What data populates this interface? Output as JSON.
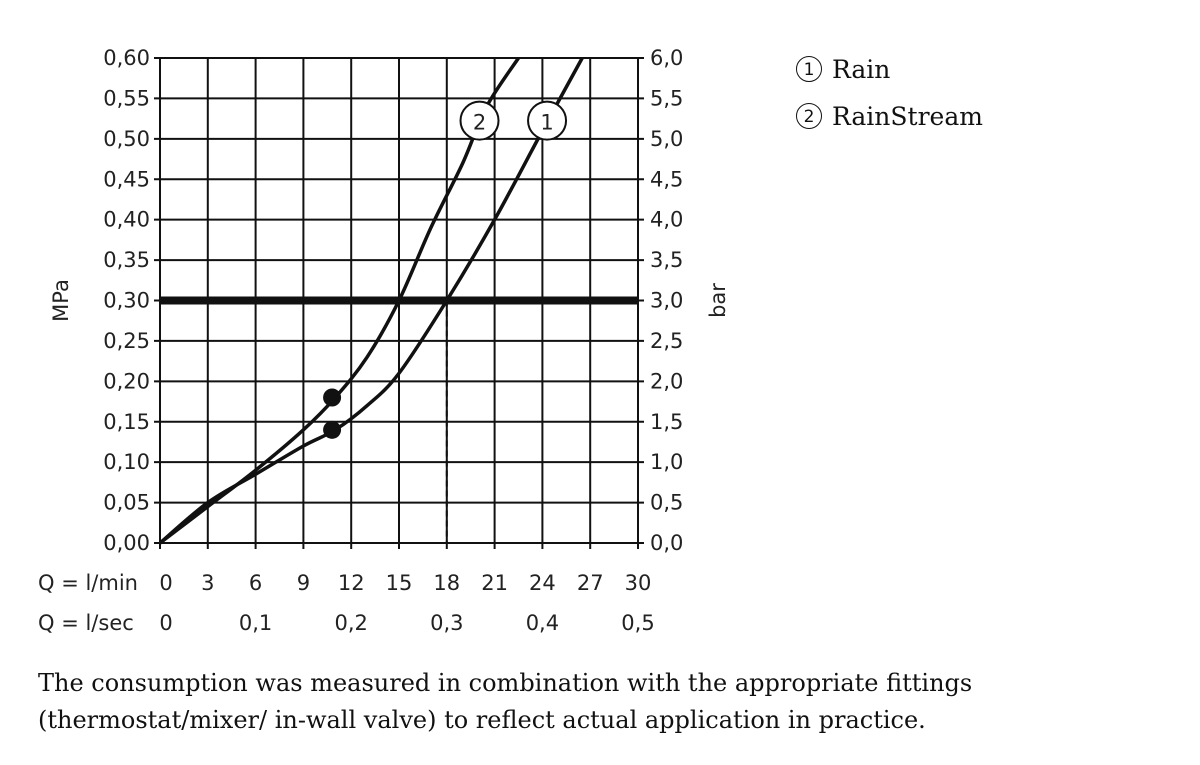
{
  "chart_data": {
    "type": "line",
    "left_axis_label": "MPa",
    "right_axis_label": "bar",
    "y_left_ticks": [
      "0,00",
      "0,05",
      "0,10",
      "0,15",
      "0,20",
      "0,25",
      "0,30",
      "0,35",
      "0,40",
      "0,45",
      "0,50",
      "0,55",
      "0,60"
    ],
    "y_right_ticks": [
      "0,0",
      "0,5",
      "1,0",
      "1,5",
      "2,0",
      "2,5",
      "3,0",
      "3,5",
      "4,0",
      "4,5",
      "5,0",
      "5,5",
      "6,0"
    ],
    "x_row1_label": "Q = l/min",
    "x_row1_ticks": [
      "0",
      "3",
      "6",
      "9",
      "12",
      "15",
      "18",
      "21",
      "24",
      "27",
      "30"
    ],
    "x_row2_label": "Q = l/sec",
    "x_row2_ticks": [
      "0",
      "0,1",
      "0,2",
      "0,3",
      "0,4",
      "0,5"
    ],
    "xlim": [
      0,
      30
    ],
    "ylim": [
      0,
      0.6
    ],
    "reference_line_mpa": 0.3,
    "grid": true,
    "series": [
      {
        "name": "Rain",
        "marker_label": "1",
        "x": [
          0,
          3,
          6,
          9,
          11,
          13,
          15,
          18,
          21,
          24,
          26.5
        ],
        "y": [
          0,
          0.05,
          0.085,
          0.12,
          0.14,
          0.17,
          0.21,
          0.3,
          0.4,
          0.51,
          0.6
        ],
        "dot": {
          "x": 10.8,
          "y": 0.14
        },
        "crossing_x": 18
      },
      {
        "name": "RainStream",
        "marker_label": "2",
        "x": [
          0,
          3,
          6,
          9,
          11,
          13,
          15,
          17,
          19,
          20.5,
          22.5
        ],
        "y": [
          0,
          0.045,
          0.09,
          0.14,
          0.18,
          0.23,
          0.3,
          0.39,
          0.47,
          0.54,
          0.6
        ],
        "dot": {
          "x": 10.8,
          "y": 0.18
        },
        "crossing_x": 15
      }
    ],
    "legend": [
      {
        "symbol": "①",
        "label": "Rain"
      },
      {
        "symbol": "②",
        "label": "RainStream"
      }
    ]
  },
  "footnote": "The consumption was measured in combination with the appropriate fittings (thermostat/mixer/ in-wall valve) to reflect actual application in practice."
}
